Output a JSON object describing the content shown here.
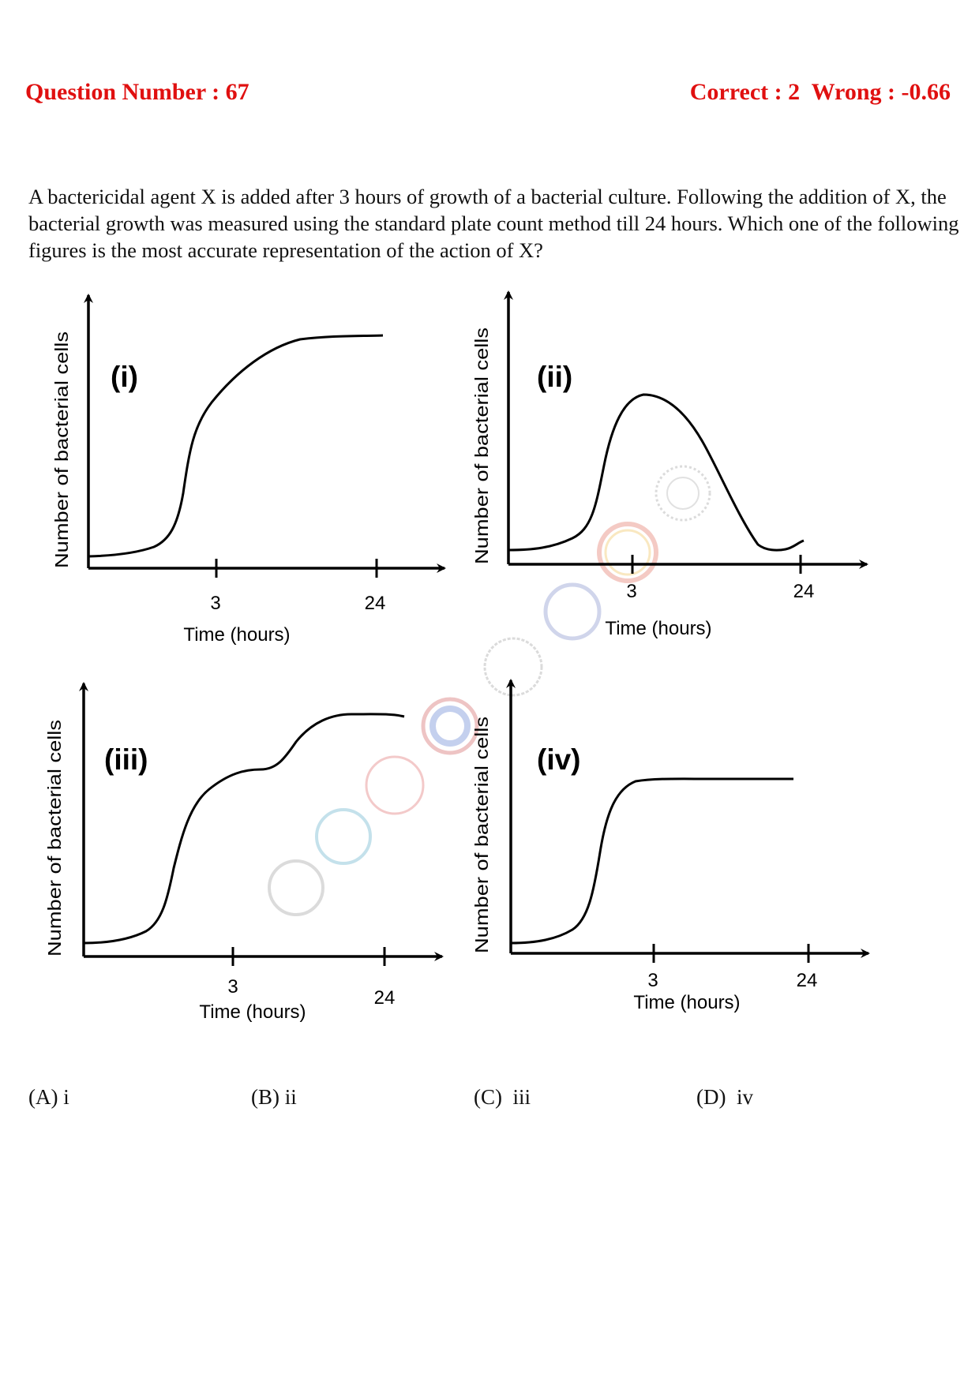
{
  "header": {
    "question_number": "Question Number : 67",
    "marks": "Correct : 2  Wrong : -0.66"
  },
  "question": {
    "text": "A bactericidal agent X is added after 3 hours of growth of a bacterial culture. Following the addition of X, the bacterial growth was measured using the standard plate count method till 24 hours. Which one of the following figures is the most accurate representation of the action of X?"
  },
  "chart_data": [
    {
      "type": "line",
      "panel_label": "(i)",
      "xlabel": "Time (hours)",
      "ylabel": "Number of bacterial cells",
      "x_ticks": [
        "3",
        "24"
      ],
      "shape": "sigmoid growth curve, continues rising after 3 h and plateaus before 24 h"
    },
    {
      "type": "line",
      "panel_label": "(ii)",
      "xlabel": "Time (hours)",
      "ylabel": "Number of bacterial cells",
      "x_ticks": [
        "3",
        "24"
      ],
      "shape": "rises to a peak at about 3 h, then declines to near baseline before 24 h with slight uptick"
    },
    {
      "type": "line",
      "panel_label": "(iii)",
      "xlabel": "Time (hours)",
      "ylabel": "Number of bacterial cells",
      "x_ticks": [
        "3",
        "24"
      ],
      "shape": "two-step (diauxic) growth curve, plateau near 3 h then second rise to plateau"
    },
    {
      "type": "line",
      "panel_label": "(iv)",
      "xlabel": "Time (hours)",
      "ylabel": "Number of bacterial cells",
      "x_ticks": [
        "3",
        "24"
      ],
      "shape": "sigmoid growth reaching plateau at 3 h, flat thereafter"
    }
  ],
  "options": [
    {
      "label": "(A) i"
    },
    {
      "label": "(B) ii"
    },
    {
      "label": "(C)  iii"
    },
    {
      "label": "(D)  iv"
    }
  ]
}
